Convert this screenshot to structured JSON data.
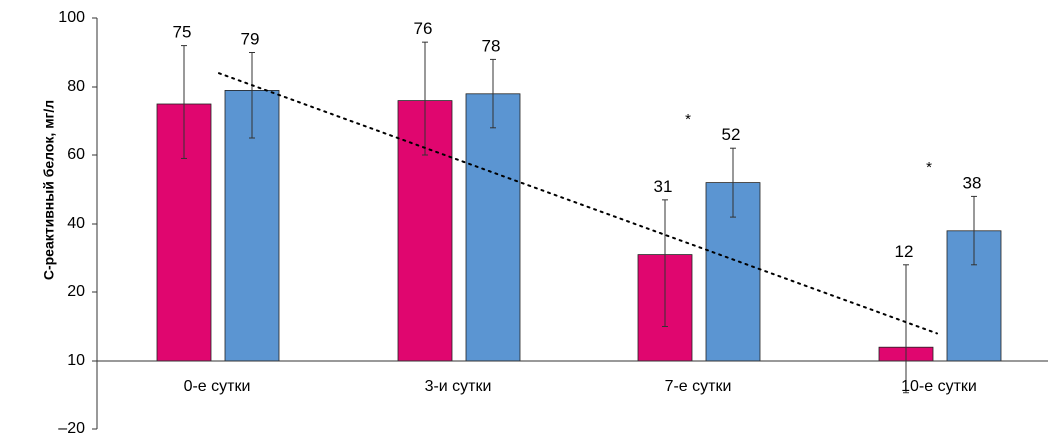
{
  "chart_data": {
    "type": "bar",
    "title": "",
    "xlabel": "",
    "ylabel": "С-реактивный белок, мг/л",
    "categories": [
      "0-е сутки",
      "3-и сутки",
      "7-е сутки",
      "10-е сутки"
    ],
    "y_ticks": [
      "100",
      "80",
      "60",
      "40",
      "20",
      "10",
      "–20"
    ],
    "series": [
      {
        "color": "#e0066f",
        "values": [
          75,
          76,
          31,
          12
        ],
        "error_low": [
          59,
          60,
          15,
          -4
        ],
        "error_high": [
          92,
          93,
          47,
          28
        ]
      },
      {
        "color": "#5b95d2",
        "values": [
          79,
          78,
          52,
          38
        ],
        "error_low": [
          65,
          68,
          42,
          28
        ],
        "error_high": [
          90,
          88,
          62,
          48
        ]
      }
    ],
    "significance_markers": [
      {
        "category": "7-е сутки",
        "text": "*"
      },
      {
        "category": "10-е сутки",
        "text": "*"
      }
    ],
    "trendline": {
      "style": "dotted",
      "from": {
        "category": "0-е сутки",
        "y": 84
      },
      "to": {
        "category": "10-е сутки",
        "y": 14
      }
    },
    "grid": false,
    "legend": "none"
  }
}
